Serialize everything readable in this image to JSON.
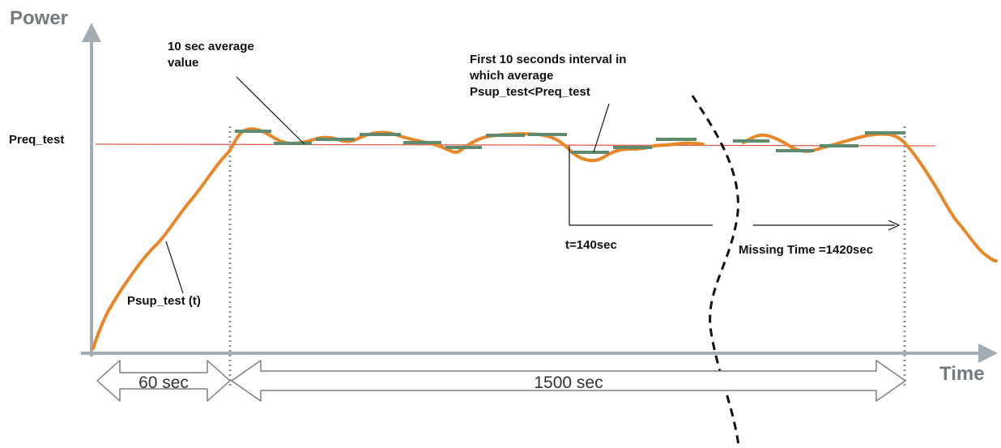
{
  "axes": {
    "y_title": "Power",
    "x_title": "Time"
  },
  "labels": {
    "preq": "Preq_test",
    "avg_note": [
      "10 sec average",
      "value"
    ],
    "interval_note": [
      "First 10 seconds interval in",
      "which average",
      "Psup_test<Preq_test"
    ],
    "t_measure": "t=140sec",
    "missing_time": "Missing Time =1420sec",
    "psup_curve": "Psup_test (t)"
  },
  "spans": {
    "ramp": "60 sec",
    "test": "1500 sec"
  },
  "colors": {
    "axis": "#9aa4ab",
    "reference_line": "#d64b3c",
    "power_curve": "#e8862a",
    "average_segments": "#5f8a6e",
    "dotted_marker": "#8d959b",
    "span_arrow": "#8a8a8a",
    "text": "#111111"
  },
  "icons": {
    "y_axis_arrow": "arrow-up-icon",
    "x_axis_arrow": "arrow-right-icon"
  }
}
